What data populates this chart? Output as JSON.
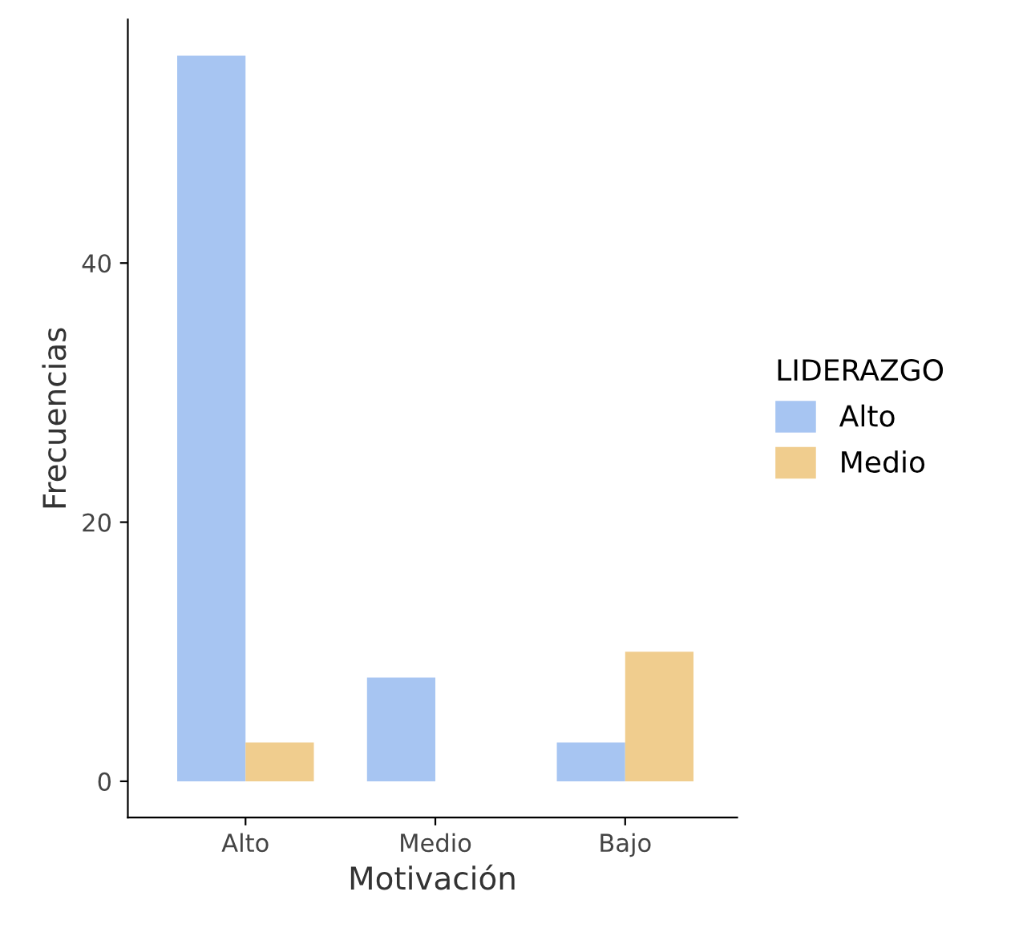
{
  "chart_data": {
    "type": "bar",
    "xlabel": "Motivación",
    "ylabel": "Frecuencias",
    "legend_title": "LIDERAZGO",
    "categories": [
      "Alto",
      "Medio",
      "Bajo"
    ],
    "series": [
      {
        "name": "Alto",
        "color": "#a7c5f2",
        "values": [
          56,
          8,
          3
        ]
      },
      {
        "name": "Medio",
        "color": "#f0cd8e",
        "values": [
          3,
          null,
          10
        ]
      }
    ],
    "ylim": [
      -2.8,
      58.8
    ],
    "yticks": [
      0,
      20,
      40
    ],
    "grid": false,
    "legend": "right"
  }
}
